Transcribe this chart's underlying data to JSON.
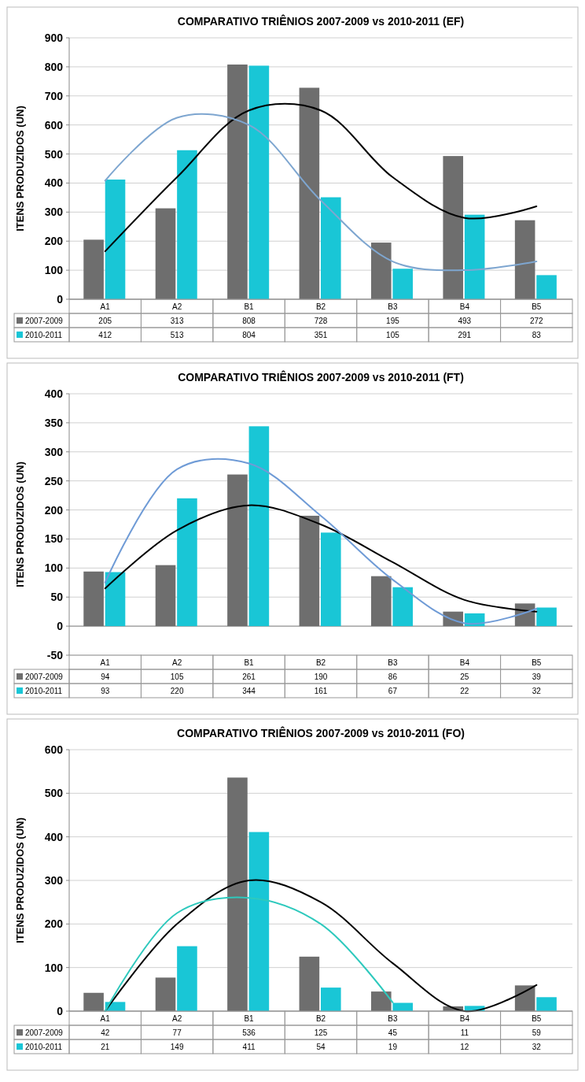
{
  "chart_data": [
    {
      "type": "bar",
      "title": "COMPARATIVO TRIÊNIOS 2007-2009 vs 2010-2011 (EF)",
      "ylabel": "ITENS PRODUZIDOS (UN)",
      "categories": [
        "A1",
        "A2",
        "B1",
        "B2",
        "B3",
        "B4",
        "B5"
      ],
      "ylim": [
        0,
        900
      ],
      "yticks": [
        0,
        100,
        200,
        300,
        400,
        500,
        600,
        700,
        800,
        900
      ],
      "grid": "y",
      "legend": "bottom",
      "series": [
        {
          "name": "2007-2009",
          "color": "#6e6e6e",
          "values": [
            205,
            313,
            808,
            728,
            195,
            493,
            272
          ],
          "value_labels": [
            "205",
            "313",
            "808",
            "728",
            "195",
            "493",
            "272"
          ]
        },
        {
          "name": "2010-2011",
          "color": "#19c6d6",
          "values": [
            412,
            513,
            804,
            351,
            105,
            291,
            83
          ],
          "value_labels": [
            "412",
            "513",
            "804",
            "351",
            "105",
            "291",
            "83"
          ]
        },
        {
          "type": "line",
          "color": "#000000",
          "x": [
            "A1",
            "A2",
            "B1",
            "B2",
            "B3",
            "B4",
            "B5"
          ],
          "values": [
            165,
            420,
            650,
            650,
            420,
            280,
            320
          ]
        },
        {
          "type": "line",
          "color": "#7ea6d0",
          "x": [
            "A1",
            "A2",
            "B1",
            "B2",
            "B3",
            "B4",
            "B5"
          ],
          "values": [
            408,
            625,
            600,
            340,
            130,
            100,
            130
          ]
        }
      ]
    },
    {
      "type": "bar",
      "title": "COMPARATIVO TRIÊNIOS 2007-2009 vs 2010-2011 (FT)",
      "ylabel": "ITENS PRODUZIDOS (UN)",
      "categories": [
        "A1",
        "A2",
        "B1",
        "B2",
        "B3",
        "B4",
        "B5"
      ],
      "ylim": [
        -50,
        400
      ],
      "yticks": [
        -50,
        0,
        50,
        100,
        150,
        200,
        250,
        300,
        350,
        400
      ],
      "grid": "y",
      "legend": "bottom",
      "series": [
        {
          "name": "2007-2009",
          "color": "#6e6e6e",
          "values": [
            94,
            105,
            261,
            190,
            86,
            25,
            39
          ],
          "value_labels": [
            "94",
            "105",
            "261",
            "190",
            "86",
            "25",
            "39"
          ]
        },
        {
          "name": "2010-2011",
          "color": "#19c6d6",
          "values": [
            93,
            220,
            344,
            161,
            67,
            22,
            32
          ],
          "value_labels": [
            "93",
            "220",
            "344",
            "161",
            "67",
            "22",
            "32"
          ]
        },
        {
          "type": "line",
          "color": "#000000",
          "x": [
            "A1",
            "A2",
            "B1",
            "B2",
            "B3",
            "B4",
            "B5"
          ],
          "values": [
            65,
            165,
            208,
            175,
            110,
            45,
            25
          ]
        },
        {
          "type": "line",
          "color": "#6f9bd6",
          "x": [
            "A1",
            "A2",
            "B1",
            "B2",
            "B3",
            "B4",
            "B5"
          ],
          "values": [
            75,
            270,
            280,
            190,
            80,
            5,
            30
          ]
        }
      ]
    },
    {
      "type": "bar",
      "title": "COMPARATIVO TRIÊNIOS 2007-2009 vs 2010-2011 (FO)",
      "ylabel": "ITENS PRODUZIDOS (UN)",
      "categories": [
        "A1",
        "A2",
        "B1",
        "B2",
        "B3",
        "B4",
        "B5"
      ],
      "ylim": [
        0,
        600
      ],
      "yticks": [
        0,
        100,
        200,
        300,
        400,
        500,
        600
      ],
      "grid": "y",
      "legend": "bottom",
      "series": [
        {
          "name": "2007-2009",
          "color": "#6e6e6e",
          "values": [
            42,
            77,
            536,
            125,
            45,
            11,
            59
          ],
          "value_labels": [
            "42",
            "77",
            "536",
            "125",
            "45",
            "11",
            "59"
          ]
        },
        {
          "name": "2010-2011",
          "color": "#19c6d6",
          "values": [
            21,
            149,
            411,
            54,
            19,
            12,
            32
          ],
          "value_labels": [
            "21",
            "149",
            "411",
            "54",
            "19",
            "12",
            "32"
          ]
        },
        {
          "type": "line",
          "color": "#000000",
          "x": [
            "A1",
            "A2",
            "B1",
            "B2",
            "B3",
            "B4",
            "B5"
          ],
          "values": [
            0,
            200,
            300,
            250,
            110,
            0,
            60
          ]
        },
        {
          "type": "line",
          "color": "#2ec9bd",
          "x": [
            "A1",
            "A2",
            "B1",
            "B2",
            "B3",
            "B4",
            "B5"
          ],
          "values": [
            0,
            225,
            260,
            200,
            20,
            null,
            null
          ]
        }
      ]
    }
  ]
}
